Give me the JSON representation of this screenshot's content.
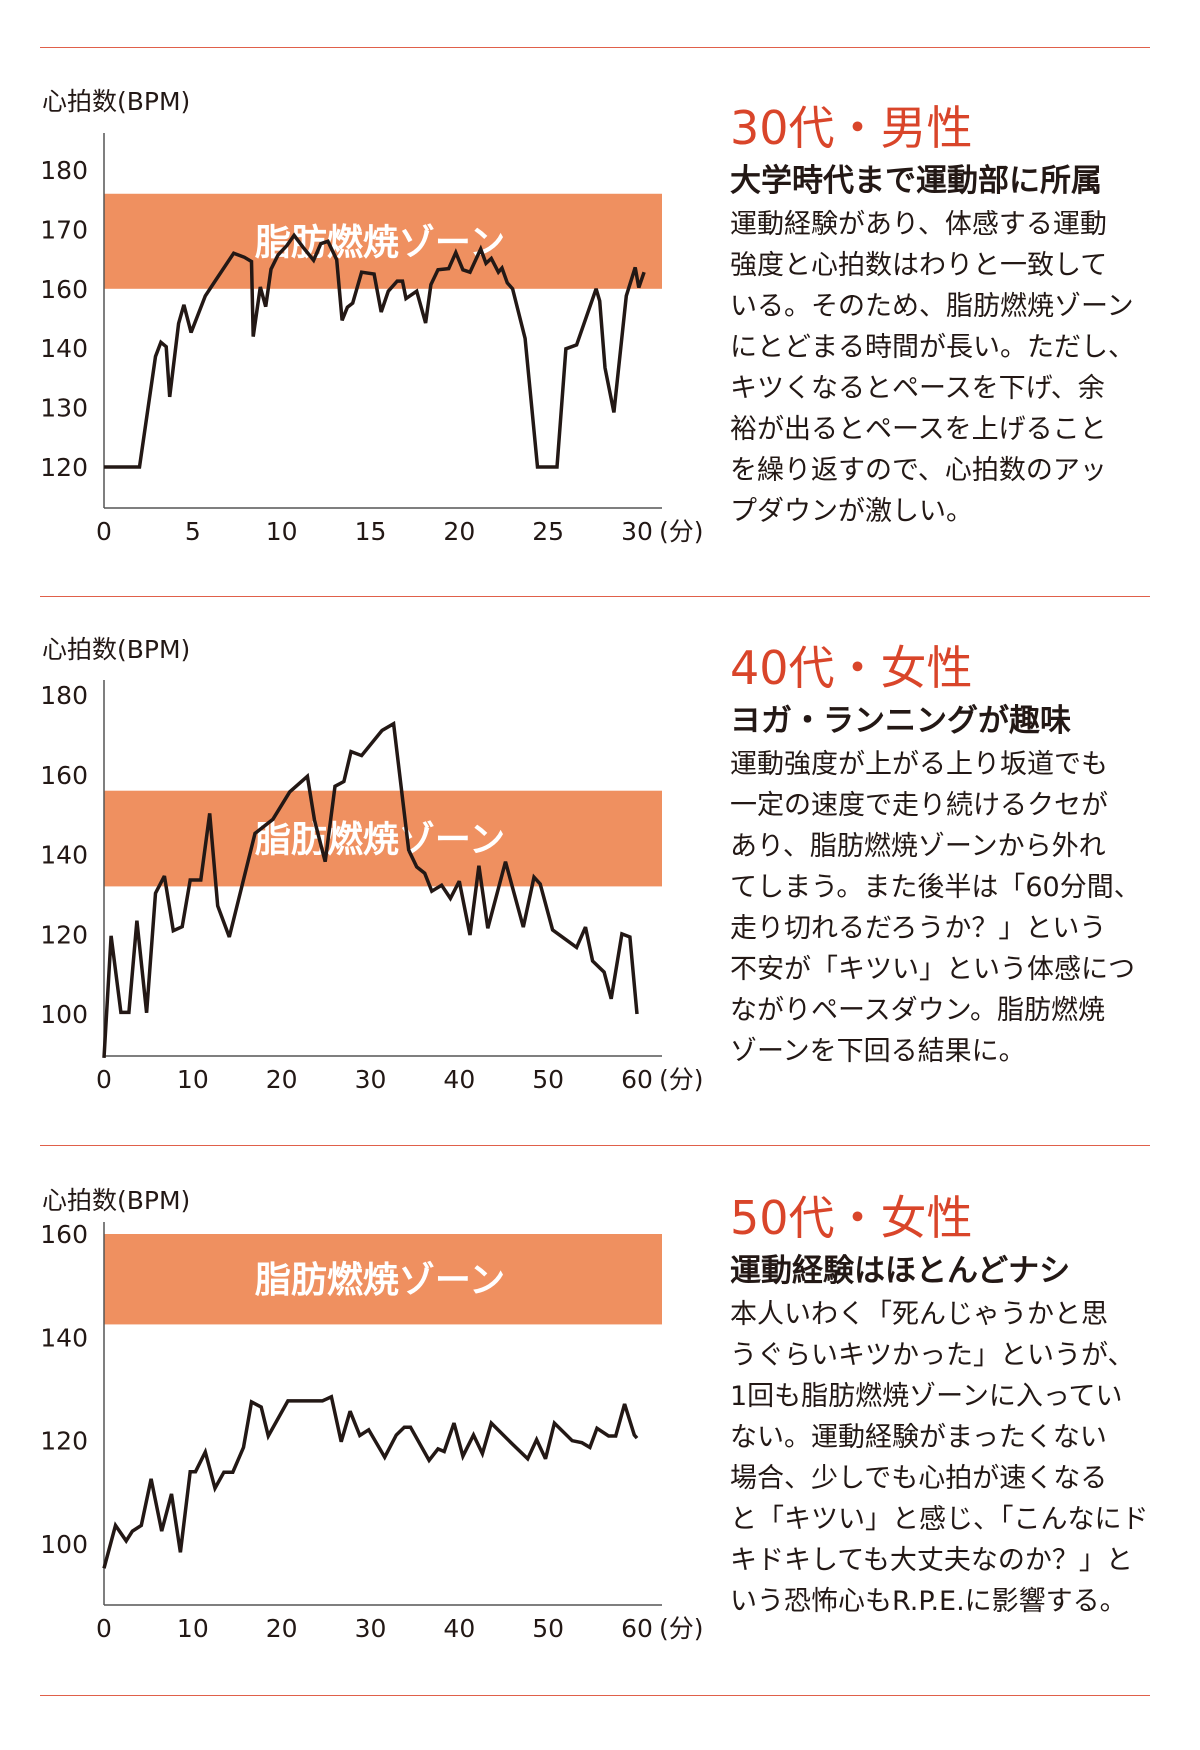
{
  "colors": {
    "rule": "#e0604a",
    "zone": "#ef9060",
    "title": "#d9452a",
    "line": "#231815"
  },
  "sections": [
    {
      "title": "30代・男性",
      "subtitle": "大学時代まで運動部に所属",
      "body": [
        "運動経験があり、体感する運動",
        "強度と心拍数はわりと一致して",
        "いる。そのため、脂肪燃焼ゾーン",
        "にとどまる時間が長い。ただし、",
        "キツくなるとペースを下げ、余",
        "裕が出るとペースを上げること",
        "を繰り返すので、心拍数のアッ",
        "プダウンが激しい。"
      ]
    },
    {
      "title": "40代・女性",
      "subtitle": "ヨガ・ランニングが趣味",
      "body": [
        "運動強度が上がる上り坂道でも",
        "一定の速度で走り続けるクセが",
        "あり、脂肪燃焼ゾーンから外れ",
        "てしまう。また後半は「60分間、",
        "走り切れるだろうか？」という",
        "不安が「キツい」という体感につ",
        "ながりペースダウン。脂肪燃焼",
        "ゾーンを下回る結果に。"
      ]
    },
    {
      "title": "50代・女性",
      "subtitle": "運動経験はほとんどナシ",
      "body": [
        "本人いわく「死んじゃうかと思",
        "うぐらいキツかった」というが、",
        "1回も脂肪燃焼ゾーンに入ってい",
        "ない。運動経験がまったくない",
        "場合、少しでも心拍が速くなる",
        "と「キツい」と感じ、「こんなにド",
        "キドキしても大丈夫なのか？」と",
        "いう恐怖心もR.P.E.に影響する。"
      ]
    }
  ],
  "chart_data": [
    {
      "type": "line",
      "ylabel": "心拍数(BPM)",
      "x_unit": "(分)",
      "x_ticks": [
        0,
        5,
        10,
        15,
        20,
        25,
        30
      ],
      "y_ticks": [
        120,
        130,
        140,
        160,
        170,
        180
      ],
      "xlim": [
        0,
        30
      ],
      "zone": {
        "label": "脂肪燃焼ゾーン",
        "low": 160,
        "high": 176
      },
      "grid": false,
      "x": [
        0,
        2.0,
        2.9,
        3.2,
        3.5,
        3.7,
        4.2,
        4.5,
        4.9,
        5.7,
        6.3,
        7.3,
        7.9,
        8.3,
        8.4,
        8.8,
        9.1,
        9.4,
        9.8,
        10.3,
        10.7,
        11.2,
        11.8,
        12.2,
        12.6,
        13.1,
        13.4,
        13.7,
        14.0,
        14.5,
        15.2,
        15.6,
        16.0,
        16.5,
        16.8,
        17.0,
        17.6,
        18.1,
        18.4,
        18.8,
        19.4,
        19.8,
        20.2,
        20.6,
        21.2,
        21.5,
        21.8,
        22.2,
        22.4,
        22.7,
        23.0,
        23.7,
        24.4,
        25.5,
        26.0,
        26.6,
        27.7,
        27.9,
        28.2,
        28.7,
        29.4,
        29.9,
        30.1,
        30.4
      ],
      "y": [
        120,
        120,
        138.6,
        142,
        140.5,
        131.8,
        148.3,
        154.6,
        145.3,
        157.6,
        161.5,
        166,
        165.3,
        164.6,
        143.9,
        160.3,
        154,
        163.3,
        165.7,
        167.3,
        169,
        167,
        164.8,
        167.6,
        168,
        164.9,
        149.4,
        153.8,
        155.2,
        162.8,
        162.5,
        152.2,
        159.2,
        161.3,
        161.3,
        156.7,
        159.2,
        148.5,
        160.7,
        163.2,
        163.4,
        166.1,
        163.2,
        162.8,
        166.7,
        164.3,
        165.1,
        162.8,
        163.5,
        161,
        160,
        143.3,
        120,
        120,
        139.9,
        141.1,
        160,
        155.9,
        136.7,
        129.2,
        157.6,
        163.6,
        160.2,
        162.8
      ]
    },
    {
      "type": "line",
      "ylabel": "心拍数(BPM)",
      "x_unit": "(分)",
      "x_ticks": [
        0,
        10,
        20,
        30,
        40,
        50,
        60
      ],
      "y_ticks": [
        100,
        120,
        140,
        160,
        180
      ],
      "xlim": [
        0,
        60
      ],
      "zone": {
        "label": "脂肪燃焼ゾーン",
        "low": 132,
        "high": 156
      },
      "grid": false,
      "x": [
        0,
        0.8,
        1.9,
        2.8,
        3.7,
        4.8,
        5.8,
        6.8,
        7.8,
        8.8,
        9.7,
        10.9,
        11.9,
        12.8,
        14.1,
        17.0,
        19.0,
        20.9,
        22.9,
        23.7,
        24.9,
        26.0,
        27.0,
        27.8,
        29.0,
        31.3,
        32.6,
        34.3,
        35.2,
        36.1,
        36.9,
        38.0,
        39.0,
        40.0,
        41.2,
        42.2,
        43.2,
        45.2,
        47.2,
        48.4,
        49.1,
        50.5,
        53.2,
        54.2,
        55.0,
        56.3,
        57.1,
        58.3,
        59.2,
        60.0
      ],
      "y": [
        89,
        119.6,
        100.4,
        100.4,
        123.4,
        100.3,
        130.3,
        134.6,
        120.9,
        121.9,
        133.6,
        133.6,
        150.3,
        127.1,
        119.3,
        145.3,
        148.8,
        155.7,
        159.6,
        148.6,
        138.2,
        157.1,
        158.3,
        165.8,
        164.8,
        171.1,
        172.8,
        141.1,
        136.9,
        135.3,
        130.8,
        132.3,
        129,
        133.3,
        119.8,
        137.2,
        121.5,
        138.2,
        121.8,
        134.3,
        132.6,
        121.1,
        116.7,
        121.8,
        113.3,
        110.5,
        103.8,
        120.1,
        119.3,
        100
      ]
    },
    {
      "type": "line",
      "ylabel": "心拍数(BPM)",
      "x_unit": "(分)",
      "x_ticks": [
        0,
        10,
        20,
        30,
        40,
        50,
        60
      ],
      "y_ticks": [
        100,
        120,
        140,
        160
      ],
      "xlim": [
        0,
        60
      ],
      "zone": {
        "label": "脂肪燃焼ゾーン",
        "low": 142.5,
        "high": 160
      },
      "grid": false,
      "x": [
        0,
        1.3,
        2.5,
        3.2,
        4.2,
        5.3,
        6.5,
        7.6,
        8.6,
        9.7,
        10.3,
        11.4,
        12.5,
        13.5,
        14.5,
        15.7,
        16.6,
        17.7,
        18.5,
        20.7,
        24.6,
        25.6,
        26.7,
        27.7,
        28.8,
        29.8,
        31.6,
        32.9,
        33.8,
        34.5,
        36.6,
        37.6,
        38.3,
        39.4,
        40.4,
        41.6,
        42.6,
        43.6,
        46.0,
        47.7,
        48.7,
        49.7,
        50.7,
        52.7,
        53.8,
        54.7,
        55.5,
        56.8,
        57.6,
        58.6,
        59.7,
        60.0
      ],
      "y": [
        95.3,
        103.6,
        100.6,
        102.5,
        103.6,
        112.6,
        102.5,
        109.7,
        98.4,
        114,
        114,
        117.8,
        110.8,
        113.9,
        113.9,
        118.7,
        127.5,
        126.5,
        120.9,
        127.7,
        127.7,
        128.5,
        119.8,
        125.7,
        121,
        122.1,
        116.8,
        121.1,
        122.6,
        122.6,
        116.2,
        118.4,
        117.9,
        123.4,
        117,
        121.1,
        117.5,
        123.4,
        119.3,
        116.5,
        120.2,
        116.5,
        123.4,
        120,
        119.6,
        118.7,
        122.4,
        120.9,
        120.9,
        127.1,
        121.1,
        120.5
      ]
    }
  ]
}
